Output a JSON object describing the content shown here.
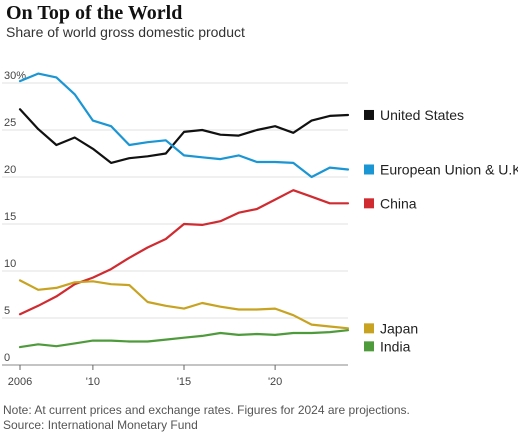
{
  "chart_data": {
    "type": "line",
    "title": "On Top of the World",
    "subtitle": "Share of world gross domestic product",
    "x": [
      2006,
      2007,
      2008,
      2009,
      2010,
      2011,
      2012,
      2013,
      2014,
      2015,
      2016,
      2017,
      2018,
      2019,
      2020,
      2021,
      2022,
      2023,
      2024
    ],
    "ylim": [
      0,
      30
    ],
    "xlim": [
      2006,
      2024
    ],
    "y_ticks": [
      "0",
      "5",
      "10",
      "15",
      "20",
      "25",
      "30%"
    ],
    "x_ticks": [
      {
        "value": 2006,
        "label": "2006"
      },
      {
        "value": 2010,
        "label": "'10"
      },
      {
        "value": 2015,
        "label": "'15"
      },
      {
        "value": 2020,
        "label": "'20"
      }
    ],
    "grid": true,
    "legend": "right, at line ends",
    "series": [
      {
        "name": "United States",
        "color": "#111111",
        "values": [
          27.2,
          25.1,
          23.4,
          24.2,
          23.0,
          21.5,
          22.0,
          22.2,
          22.5,
          24.8,
          25.0,
          24.5,
          24.4,
          25.0,
          25.4,
          24.7,
          26.0,
          26.5,
          26.6
        ]
      },
      {
        "name": "European Union & U.K.",
        "color": "#1a96d4",
        "values": [
          30.2,
          31.0,
          30.6,
          28.8,
          26.0,
          25.4,
          23.4,
          23.7,
          23.9,
          22.3,
          22.1,
          21.9,
          22.3,
          21.6,
          21.6,
          21.5,
          20.0,
          21.0,
          20.8
        ]
      },
      {
        "name": "China",
        "color": "#d02b30",
        "values": [
          5.4,
          6.3,
          7.3,
          8.6,
          9.3,
          10.2,
          11.4,
          12.5,
          13.4,
          15.0,
          14.9,
          15.3,
          16.2,
          16.6,
          17.6,
          18.6,
          17.9,
          17.2,
          17.2
        ]
      },
      {
        "name": "Japan",
        "color": "#c8a321",
        "values": [
          9.0,
          8.0,
          8.2,
          8.8,
          8.9,
          8.6,
          8.5,
          6.7,
          6.3,
          6.0,
          6.6,
          6.2,
          5.9,
          5.9,
          6.0,
          5.3,
          4.3,
          4.1,
          3.9
        ]
      },
      {
        "name": "India",
        "color": "#4e9b3b",
        "values": [
          1.9,
          2.2,
          2.0,
          2.3,
          2.6,
          2.6,
          2.5,
          2.5,
          2.7,
          2.9,
          3.1,
          3.4,
          3.2,
          3.3,
          3.2,
          3.4,
          3.4,
          3.5,
          3.7
        ]
      }
    ]
  },
  "notes": {
    "note": "Note: At current prices and exchange rates. Figures for 2024 are projections.",
    "source": "Source: International Monetary Fund"
  }
}
